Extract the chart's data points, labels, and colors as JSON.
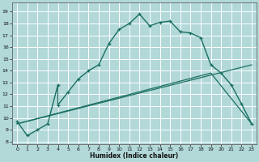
{
  "xlabel": "Humidex (Indice chaleur)",
  "bg_color": "#b2d8d8",
  "grid_color": "#ffffff",
  "line_color": "#1a7060",
  "xlim": [
    -0.5,
    23.5
  ],
  "ylim": [
    7.8,
    19.8
  ],
  "xticks": [
    0,
    1,
    2,
    3,
    4,
    5,
    6,
    7,
    8,
    9,
    10,
    11,
    12,
    13,
    14,
    15,
    16,
    17,
    18,
    19,
    20,
    21,
    22,
    23
  ],
  "yticks": [
    8,
    9,
    10,
    11,
    12,
    13,
    14,
    15,
    16,
    17,
    18,
    19
  ],
  "line1_x": [
    0,
    1,
    2,
    3,
    4,
    4,
    5,
    6,
    7,
    8,
    9,
    10,
    11,
    12,
    13,
    14,
    15,
    16,
    17,
    18,
    19,
    20,
    21,
    22,
    23
  ],
  "line1_y": [
    9.7,
    8.5,
    9.0,
    9.5,
    12.8,
    11.1,
    12.2,
    13.3,
    14.0,
    14.5,
    16.3,
    17.5,
    18.0,
    18.8,
    17.8,
    18.1,
    18.2,
    17.3,
    17.2,
    16.8,
    14.5,
    13.8,
    12.8,
    11.2,
    9.5
  ],
  "line2_x": [
    0,
    23
  ],
  "line2_y": [
    9.5,
    14.5
  ],
  "line3_x": [
    0,
    19,
    23
  ],
  "line3_y": [
    9.5,
    13.8,
    9.5
  ]
}
